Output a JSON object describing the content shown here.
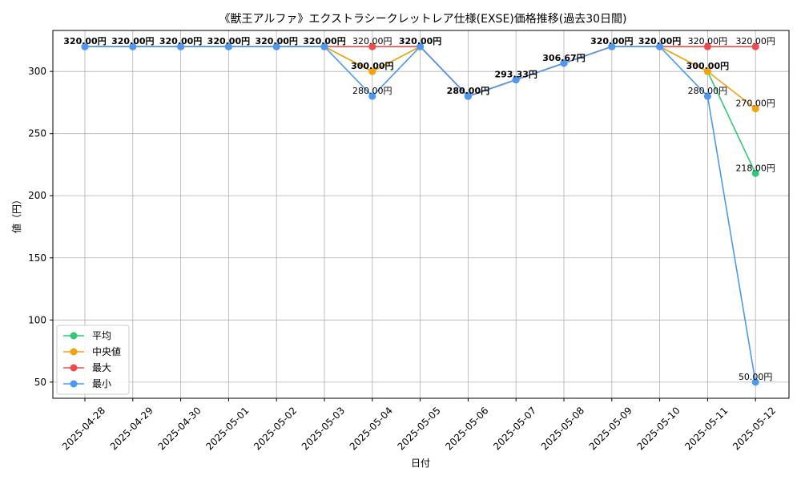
{
  "chart_data": {
    "type": "line",
    "title": "《獣王アルファ》エクストラシークレットレア仕様(EXSE)価格推移(過去30日間)",
    "xlabel": "日付",
    "ylabel": "値（円）",
    "x": [
      "2025-04-28",
      "2025-04-29",
      "2025-04-30",
      "2025-05-01",
      "2025-05-02",
      "2025-05-03",
      "2025-05-04",
      "2025-05-05",
      "2025-05-06",
      "2025-05-07",
      "2025-05-08",
      "2025-05-09",
      "2025-05-10",
      "2025-05-11",
      "2025-05-12"
    ],
    "ylim": [
      37,
      333
    ],
    "yticks": [
      50,
      100,
      150,
      200,
      250,
      300
    ],
    "grid": true,
    "legend_position": "lower-left",
    "series": [
      {
        "name": "平均",
        "color": "#2ecc71",
        "values": [
          320,
          320,
          320,
          320,
          320,
          320,
          300,
          320,
          280,
          293.33,
          306.67,
          320,
          320,
          300,
          218
        ]
      },
      {
        "name": "中央値",
        "color": "#f5a30a",
        "values": [
          320,
          320,
          320,
          320,
          320,
          320,
          300,
          320,
          280,
          293.33,
          306.67,
          320,
          320,
          300,
          270
        ]
      },
      {
        "name": "最大",
        "color": "#f04a4a",
        "values": [
          320,
          320,
          320,
          320,
          320,
          320,
          320,
          320,
          280,
          293.33,
          306.67,
          320,
          320,
          320,
          320
        ]
      },
      {
        "name": "最小",
        "color": "#4a9af5",
        "values": [
          320,
          320,
          320,
          320,
          320,
          320,
          280,
          320,
          280,
          293.33,
          306.67,
          320,
          320,
          280,
          50
        ]
      }
    ],
    "point_labels": [
      {
        "text": "320.00円",
        "x_index": 0,
        "y": 320,
        "bold": true
      },
      {
        "text": "320.00円",
        "x_index": 1,
        "y": 320,
        "bold": true
      },
      {
        "text": "320.00円",
        "x_index": 2,
        "y": 320,
        "bold": true
      },
      {
        "text": "320.00円",
        "x_index": 3,
        "y": 320,
        "bold": true
      },
      {
        "text": "320.00円",
        "x_index": 4,
        "y": 320,
        "bold": true
      },
      {
        "text": "320.00円",
        "x_index": 5,
        "y": 320,
        "bold": true
      },
      {
        "text": "320.00円",
        "x_index": 6,
        "y": 320,
        "bold": false
      },
      {
        "text": "300.00円",
        "x_index": 6,
        "y": 300,
        "bold": true
      },
      {
        "text": "280.00円",
        "x_index": 6,
        "y": 280,
        "bold": false
      },
      {
        "text": "320.00円",
        "x_index": 7,
        "y": 320,
        "bold": true
      },
      {
        "text": "280.00円",
        "x_index": 8,
        "y": 280,
        "bold": true
      },
      {
        "text": "293.33円",
        "x_index": 9,
        "y": 293.33,
        "bold": true
      },
      {
        "text": "306.67円",
        "x_index": 10,
        "y": 306.67,
        "bold": true
      },
      {
        "text": "320.00円",
        "x_index": 11,
        "y": 320,
        "bold": true
      },
      {
        "text": "320.00円",
        "x_index": 12,
        "y": 320,
        "bold": true
      },
      {
        "text": "320.00円",
        "x_index": 13,
        "y": 320,
        "bold": false
      },
      {
        "text": "300.00円",
        "x_index": 13,
        "y": 300,
        "bold": true
      },
      {
        "text": "280.00円",
        "x_index": 13,
        "y": 280,
        "bold": false
      },
      {
        "text": "320.00円",
        "x_index": 14,
        "y": 320,
        "bold": false
      },
      {
        "text": "270.00円",
        "x_index": 14,
        "y": 270,
        "bold": false
      },
      {
        "text": "218.00円",
        "x_index": 14,
        "y": 218,
        "bold": false
      },
      {
        "text": "50.00円",
        "x_index": 14,
        "y": 50,
        "bold": false
      }
    ]
  }
}
